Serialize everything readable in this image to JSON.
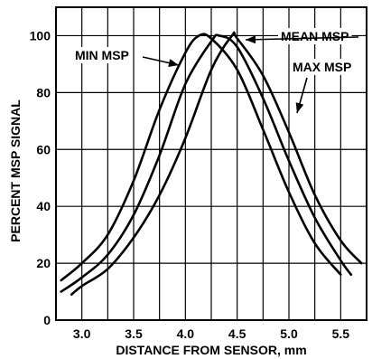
{
  "chart_data": {
    "type": "line",
    "title": "",
    "xlabel": "DISTANCE FROM SENSOR, mm",
    "ylabel": "PERCENT MSP SIGNAL",
    "xlim": [
      2.75,
      5.75
    ],
    "ylim": [
      0,
      110
    ],
    "xticks": [
      3.0,
      3.5,
      4.0,
      4.5,
      5.0,
      5.5
    ],
    "xtick_labels": [
      "3.0",
      "3.5",
      "4.0",
      "4.5",
      "5.0",
      "5.5"
    ],
    "yticks": [
      0,
      20,
      40,
      60,
      80,
      100
    ],
    "ytick_labels": [
      "0",
      "20",
      "40",
      "60",
      "80",
      "100"
    ],
    "x_gridlines": [
      2.75,
      3.0,
      3.25,
      3.5,
      3.75,
      4.0,
      4.25,
      4.5,
      4.75,
      5.0,
      5.25,
      5.5,
      5.75
    ],
    "y_gridlines": [
      0,
      20,
      40,
      60,
      80,
      100
    ],
    "grid": true,
    "legend": "none",
    "series": [
      {
        "name": "MIN MSP",
        "x": [
          2.8,
          3.0,
          3.25,
          3.5,
          3.75,
          4.0,
          4.13,
          4.25,
          4.5,
          4.75,
          5.0,
          5.25,
          5.5
        ],
        "y": [
          14,
          20,
          30,
          49,
          74,
          94,
          100,
          99,
          88,
          67,
          45,
          27,
          16
        ]
      },
      {
        "name": "MEAN MSP",
        "x": [
          2.8,
          3.0,
          3.25,
          3.5,
          3.75,
          4.0,
          4.25,
          4.33,
          4.5,
          4.75,
          5.0,
          5.25,
          5.5,
          5.6
        ],
        "y": [
          10,
          15,
          23,
          37,
          58,
          83,
          98,
          100,
          96,
          78,
          56,
          36,
          21,
          16
        ]
      },
      {
        "name": "MAX MSP",
        "x": [
          2.9,
          3.0,
          3.25,
          3.5,
          3.75,
          4.0,
          4.25,
          4.45,
          4.5,
          4.75,
          5.0,
          5.25,
          5.5,
          5.7
        ],
        "y": [
          9,
          12,
          18,
          29,
          44,
          64,
          88,
          100,
          99,
          86,
          66,
          44,
          28,
          20
        ]
      }
    ],
    "annotations": [
      {
        "text": "MIN MSP",
        "series": "MIN MSP"
      },
      {
        "text": "MEAN MSP",
        "series": "MEAN MSP"
      },
      {
        "text": "MAX MSP",
        "series": "MAX MSP"
      }
    ]
  }
}
